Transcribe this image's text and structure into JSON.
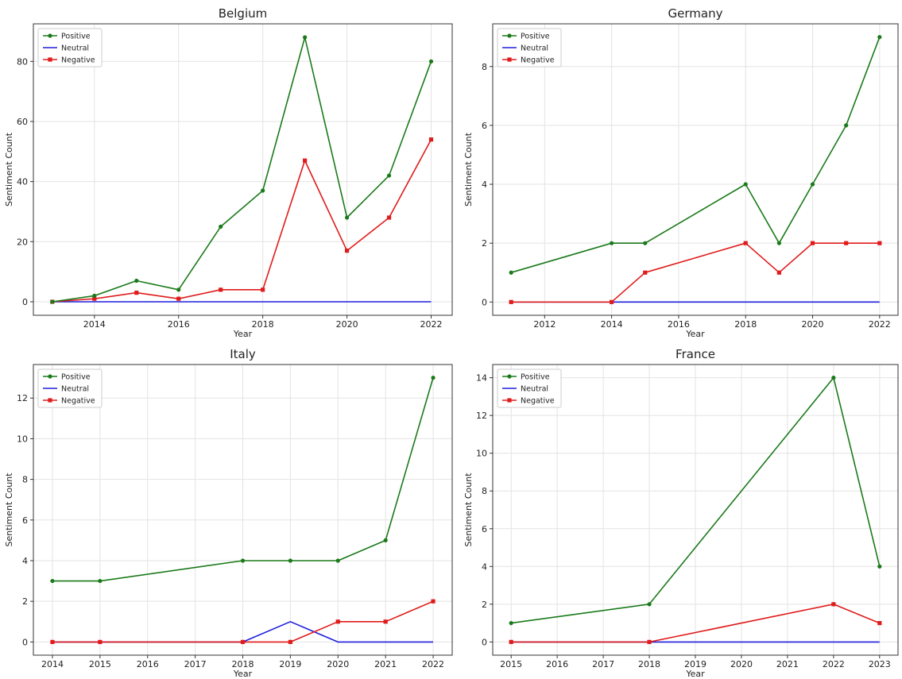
{
  "chart_data": [
    {
      "type": "line",
      "title": "Belgium",
      "xlabel": "Year",
      "ylabel": "Sentiment Count",
      "xlim": [
        2012.55,
        2022.5
      ],
      "ylim": [
        -4.5,
        92.5
      ],
      "xticks": [
        2014,
        2016,
        2018,
        2020,
        2022
      ],
      "yticks": [
        0,
        20,
        40,
        60,
        80
      ],
      "grid": true,
      "legend": "top-left",
      "x": [
        2013,
        2014,
        2015,
        2016,
        2017,
        2018,
        2019,
        2020,
        2021,
        2022
      ],
      "series": [
        {
          "name": "Positive",
          "color": "#1a7a1a",
          "marker": "circle",
          "values": [
            0,
            2,
            7,
            4,
            25,
            37,
            88,
            28,
            42,
            80
          ]
        },
        {
          "name": "Neutral",
          "color": "#1f1fdd",
          "marker": "none",
          "values": [
            0,
            0,
            0,
            0,
            0,
            0,
            0,
            0,
            0,
            0
          ]
        },
        {
          "name": "Negative",
          "color": "#e01b1b",
          "marker": "square",
          "values": [
            0,
            1,
            3,
            1,
            4,
            4,
            47,
            17,
            28,
            54
          ]
        }
      ]
    },
    {
      "type": "line",
      "title": "Germany",
      "xlabel": "Year",
      "ylabel": "Sentiment Count",
      "xlim": [
        2010.45,
        2022.55
      ],
      "ylim": [
        -0.45,
        9.45
      ],
      "xticks": [
        2012,
        2014,
        2016,
        2018,
        2020,
        2022
      ],
      "yticks": [
        0,
        2,
        4,
        6,
        8
      ],
      "grid": true,
      "legend": "top-left",
      "x": [
        2011,
        2014,
        2015,
        2018,
        2019,
        2020,
        2021,
        2022
      ],
      "series": [
        {
          "name": "Positive",
          "color": "#1a7a1a",
          "marker": "circle",
          "values": [
            1,
            2,
            2,
            4,
            2,
            4,
            6,
            9
          ]
        },
        {
          "name": "Neutral",
          "color": "#1f1fdd",
          "marker": "none",
          "values": [
            0,
            0,
            0,
            0,
            0,
            0,
            0,
            0
          ]
        },
        {
          "name": "Negative",
          "color": "#e01b1b",
          "marker": "square",
          "values": [
            0,
            0,
            1,
            2,
            1,
            2,
            2,
            2
          ]
        }
      ]
    },
    {
      "type": "line",
      "title": "Italy",
      "xlabel": "Year",
      "ylabel": "Sentiment Count",
      "xlim": [
        2013.6,
        2022.4
      ],
      "ylim": [
        -0.65,
        13.65
      ],
      "xticks": [
        2014,
        2015,
        2016,
        2017,
        2018,
        2019,
        2020,
        2021,
        2022
      ],
      "yticks": [
        0,
        2,
        4,
        6,
        8,
        10,
        12
      ],
      "grid": true,
      "legend": "top-left",
      "x": [
        2014,
        2015,
        2018,
        2019,
        2020,
        2021,
        2022
      ],
      "series": [
        {
          "name": "Positive",
          "color": "#1a7a1a",
          "marker": "circle",
          "values": [
            3,
            3,
            4,
            4,
            4,
            5,
            13
          ]
        },
        {
          "name": "Neutral",
          "color": "#1f1fdd",
          "marker": "none",
          "values": [
            0,
            0,
            0,
            1,
            0,
            0,
            0
          ]
        },
        {
          "name": "Negative",
          "color": "#e01b1b",
          "marker": "square",
          "values": [
            0,
            0,
            0,
            0,
            1,
            1,
            2
          ]
        }
      ]
    },
    {
      "type": "line",
      "title": "France",
      "xlabel": "Year",
      "ylabel": "Sentiment Count",
      "xlim": [
        2014.6,
        2023.4
      ],
      "ylim": [
        -0.7,
        14.7
      ],
      "xticks": [
        2015,
        2016,
        2017,
        2018,
        2019,
        2020,
        2021,
        2022,
        2023
      ],
      "yticks": [
        0,
        2,
        4,
        6,
        8,
        10,
        12,
        14
      ],
      "grid": true,
      "legend": "top-left",
      "x": [
        2015,
        2018,
        2022,
        2023
      ],
      "series": [
        {
          "name": "Positive",
          "color": "#1a7a1a",
          "marker": "circle",
          "values": [
            1,
            2,
            14,
            4
          ]
        },
        {
          "name": "Neutral",
          "color": "#1f1fdd",
          "marker": "none",
          "values": [
            0,
            0,
            0,
            0
          ]
        },
        {
          "name": "Negative",
          "color": "#e01b1b",
          "marker": "square",
          "values": [
            0,
            0,
            2,
            1
          ]
        }
      ]
    }
  ]
}
